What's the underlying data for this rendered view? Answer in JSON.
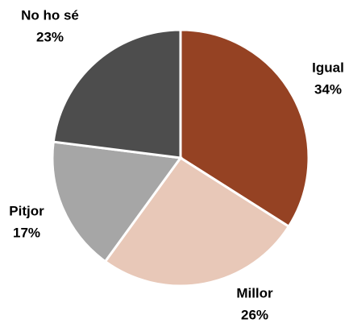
{
  "chart_data": {
    "type": "pie",
    "categories": [
      "Igual",
      "Millor",
      "Pitjor",
      "No ho sé"
    ],
    "values": [
      34,
      26,
      17,
      23
    ],
    "value_labels": [
      "34%",
      "26%",
      "17%",
      "23%"
    ],
    "colors": [
      "#954223",
      "#e8c8b8",
      "#a6a6a6",
      "#4d4d4d"
    ]
  }
}
